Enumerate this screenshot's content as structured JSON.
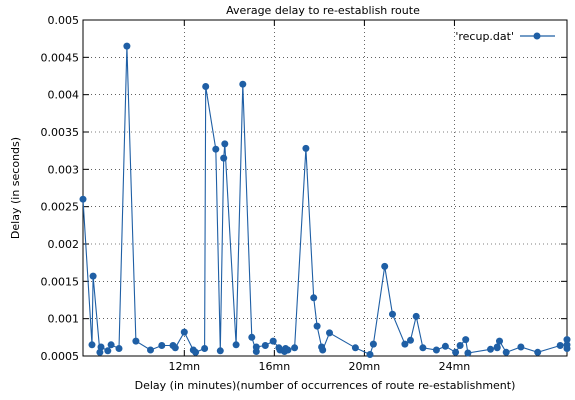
{
  "chart_data": {
    "type": "line",
    "title": "Average delay to re-establish route",
    "xlabel": "Delay (in minutes)(number of occurrences of route  re-establishment)",
    "ylabel": "Delay (in seconds)",
    "xlim": [
      7.5,
      29.0
    ],
    "ylim": [
      0.0005,
      0.005
    ],
    "grid": true,
    "legend_position": "top-right",
    "x_ticks": [
      {
        "value": 12,
        "label": "12mn"
      },
      {
        "value": 16,
        "label": "16mn"
      },
      {
        "value": 20,
        "label": "20mn"
      },
      {
        "value": 24,
        "label": "24mn"
      }
    ],
    "y_ticks": [
      {
        "value": 0.0005,
        "label": "0.0005"
      },
      {
        "value": 0.001,
        "label": "0.001"
      },
      {
        "value": 0.0015,
        "label": "0.0015"
      },
      {
        "value": 0.002,
        "label": "0.002"
      },
      {
        "value": 0.0025,
        "label": "0.0025"
      },
      {
        "value": 0.003,
        "label": "0.003"
      },
      {
        "value": 0.0035,
        "label": "0.0035"
      },
      {
        "value": 0.004,
        "label": "0.004"
      },
      {
        "value": 0.0045,
        "label": "0.0045"
      },
      {
        "value": 0.005,
        "label": "0.005"
      }
    ],
    "series": [
      {
        "name": "'recup.dat'",
        "color": "#1f5fa5",
        "x": [
          7.5,
          7.9,
          7.95,
          8.25,
          8.3,
          8.6,
          8.75,
          9.1,
          9.45,
          9.85,
          10.5,
          11.0,
          11.5,
          11.6,
          12.0,
          12.4,
          12.5,
          12.9,
          12.95,
          13.4,
          13.6,
          13.75,
          13.8,
          14.3,
          14.6,
          15.0,
          15.2,
          15.2,
          15.6,
          15.95,
          16.2,
          16.25,
          16.45,
          16.5,
          16.6,
          16.9,
          17.4,
          17.75,
          17.9,
          18.1,
          18.15,
          18.45,
          19.6,
          20.25,
          20.4,
          20.9,
          21.25,
          21.8,
          22.05,
          22.3,
          22.6,
          23.2,
          23.6,
          24.05,
          24.25,
          24.5,
          24.6,
          25.6,
          25.9,
          25.9,
          26.0,
          26.3,
          26.95,
          27.7,
          28.7,
          29.0,
          29.0,
          29.0
        ],
        "values": [
          0.0026,
          0.00065,
          0.00157,
          0.00055,
          0.00062,
          0.00057,
          0.00065,
          0.0006,
          0.00465,
          0.0007,
          0.00058,
          0.00064,
          0.00064,
          0.00061,
          0.00082,
          0.00058,
          0.00055,
          0.0006,
          0.00411,
          0.00327,
          0.00057,
          0.00315,
          0.00334,
          0.00065,
          0.00414,
          0.00075,
          0.00056,
          0.00062,
          0.00064,
          0.0007,
          0.00061,
          0.00058,
          0.00056,
          0.0006,
          0.00058,
          0.00061,
          0.00328,
          0.00128,
          0.0009,
          0.00062,
          0.00058,
          0.00081,
          0.00061,
          0.00052,
          0.00066,
          0.0017,
          0.00106,
          0.00066,
          0.00071,
          0.00103,
          0.00061,
          0.00058,
          0.00063,
          0.00055,
          0.00064,
          0.00072,
          0.00054,
          0.00059,
          0.00062,
          0.00061,
          0.0007,
          0.00055,
          0.00062,
          0.00055,
          0.00064,
          0.00065,
          0.00072,
          0.0006
        ]
      }
    ]
  }
}
